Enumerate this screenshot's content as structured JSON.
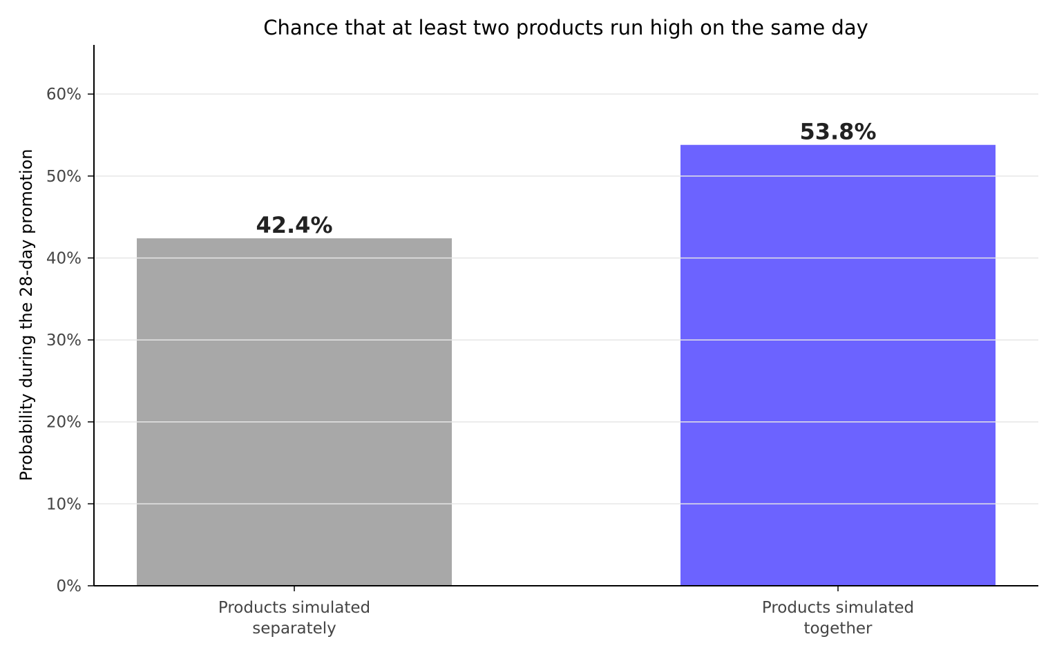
{
  "chart_data": {
    "type": "bar",
    "title": "Chance that at least two products run high on the same day",
    "ylabel": "Probability during the 28-day promotion",
    "xlabel": "",
    "ylim": [
      0,
      66
    ],
    "yticks": [
      0,
      10,
      20,
      30,
      40,
      50,
      60
    ],
    "ytick_labels": [
      "0%",
      "10%",
      "20%",
      "30%",
      "40%",
      "50%",
      "60%"
    ],
    "grid": "horizontal",
    "categories": [
      [
        "Products simulated",
        "separately"
      ],
      [
        "Products simulated",
        "together"
      ]
    ],
    "values": [
      42.4,
      53.8
    ],
    "value_labels": [
      "42.4%",
      "53.8%"
    ],
    "colors": [
      "#a8a8a8",
      "#6c63ff"
    ]
  }
}
